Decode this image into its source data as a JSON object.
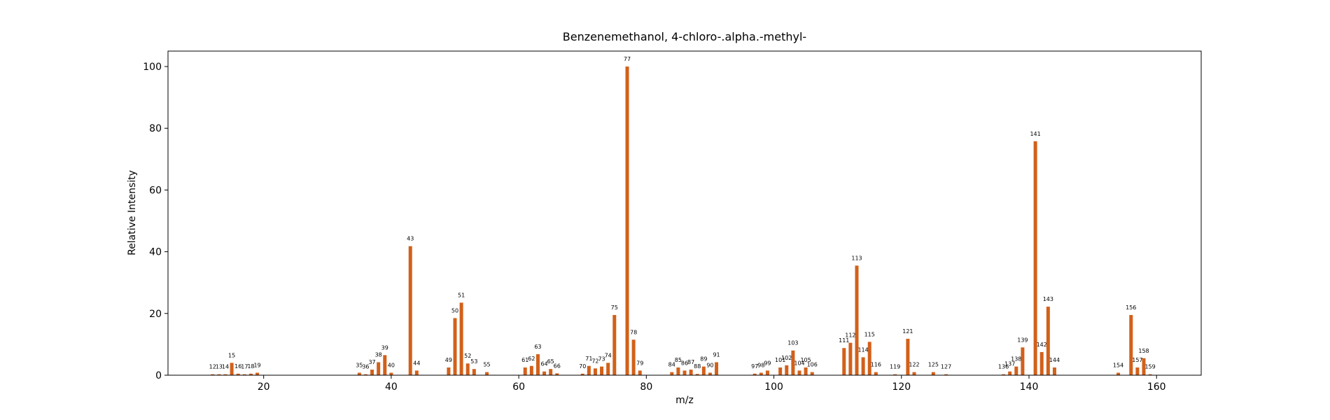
{
  "chart_data": {
    "type": "bar",
    "title": "Benzenemethanol, 4-chloro-.alpha.-methyl-",
    "xlabel": "m/z",
    "ylabel": "Relative Intensity",
    "xlim": [
      5,
      167
    ],
    "ylim": [
      0,
      105
    ],
    "xticks": [
      20,
      40,
      60,
      80,
      100,
      120,
      140,
      160
    ],
    "yticks": [
      0,
      20,
      40,
      60,
      80,
      100
    ],
    "bar_color": "#d2601a",
    "grid": false,
    "x": [
      12,
      13,
      14,
      15,
      16,
      17,
      18,
      19,
      35,
      36,
      37,
      38,
      39,
      40,
      43,
      44,
      49,
      50,
      51,
      52,
      53,
      55,
      61,
      62,
      63,
      64,
      65,
      66,
      70,
      71,
      72,
      73,
      74,
      75,
      77,
      78,
      79,
      84,
      85,
      86,
      87,
      88,
      89,
      90,
      91,
      97,
      98,
      99,
      101,
      102,
      103,
      104,
      105,
      106,
      111,
      112,
      113,
      114,
      115,
      116,
      119,
      121,
      122,
      125,
      127,
      136,
      137,
      138,
      139,
      141,
      142,
      143,
      144,
      154,
      156,
      157,
      158,
      159
    ],
    "values": [
      0.3,
      0.3,
      0.3,
      4.0,
      0.5,
      0.3,
      0.5,
      0.8,
      0.8,
      0.3,
      1.8,
      4.2,
      6.5,
      0.8,
      41.8,
      1.5,
      2.5,
      18.5,
      23.5,
      3.8,
      2.0,
      1.0,
      2.5,
      3.0,
      6.8,
      1.2,
      2.0,
      0.6,
      0.5,
      3.0,
      2.2,
      2.8,
      4.0,
      19.5,
      100,
      11.5,
      1.5,
      1.0,
      2.5,
      1.5,
      1.8,
      0.4,
      2.8,
      0.8,
      4.2,
      0.5,
      0.8,
      1.5,
      2.5,
      3.2,
      8.0,
      1.5,
      2.5,
      1.0,
      8.8,
      10.5,
      35.5,
      5.8,
      10.8,
      1.0,
      0.3,
      11.8,
      1.0,
      1.0,
      0.3,
      0.3,
      1.2,
      2.8,
      9.0,
      75.8,
      7.5,
      22.2,
      2.5,
      0.8,
      19.5,
      2.5,
      5.5,
      0.3
    ]
  }
}
